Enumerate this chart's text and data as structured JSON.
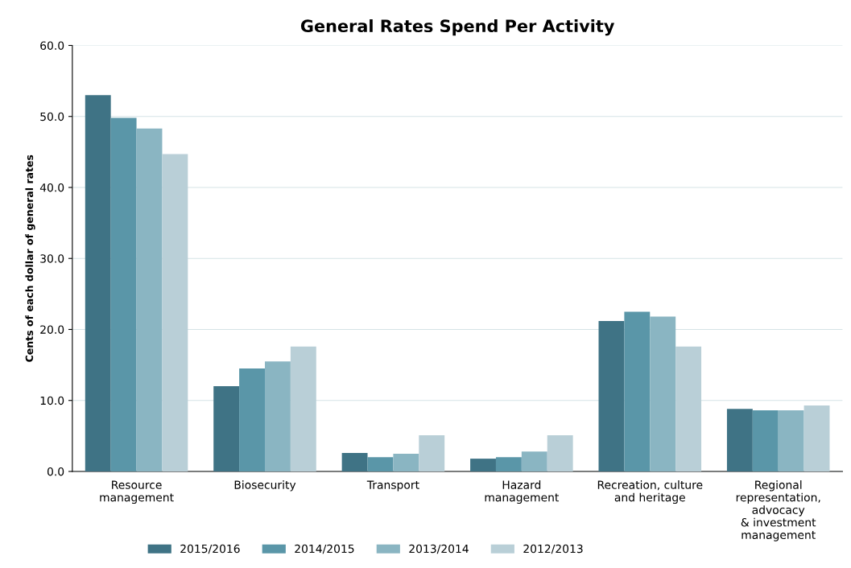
{
  "chart_data": {
    "type": "bar",
    "title": "General Rates Spend Per Activity",
    "ylabel": "Cents of each dollar of general rates",
    "categories": [
      "Resource\nmanagement",
      "Biosecurity",
      "Transport",
      "Hazard\nmanagement",
      "Recreation, culture\nand heritage",
      "Regional\nrepresentation,\nadvocacy\n& investment\nmanagement"
    ],
    "series": [
      {
        "name": "2015/2016",
        "color": "#3f7385",
        "values": [
          53.0,
          12.0,
          2.6,
          1.8,
          21.2,
          8.8
        ]
      },
      {
        "name": "2014/2015",
        "color": "#5a96a8",
        "values": [
          49.8,
          14.5,
          2.0,
          2.0,
          22.5,
          8.6
        ]
      },
      {
        "name": "2013/2014",
        "color": "#8ab5c2",
        "values": [
          48.3,
          15.5,
          2.5,
          2.8,
          21.8,
          8.6
        ]
      },
      {
        "name": "2012/2013",
        "color": "#b9cfd7",
        "values": [
          44.7,
          17.6,
          5.1,
          5.1,
          17.6,
          9.3
        ]
      }
    ],
    "ylim": [
      0,
      60
    ],
    "yticks": [
      {
        "value": 0,
        "label": "0.0"
      },
      {
        "value": 10,
        "label": "10.0"
      },
      {
        "value": 20,
        "label": "20.0"
      },
      {
        "value": 30,
        "label": "30.0"
      },
      {
        "value": 40,
        "label": "40.0"
      },
      {
        "value": 50,
        "label": "50.0"
      },
      {
        "value": 60,
        "label": "60.0"
      }
    ],
    "grid": "y",
    "legend": "bottom"
  }
}
